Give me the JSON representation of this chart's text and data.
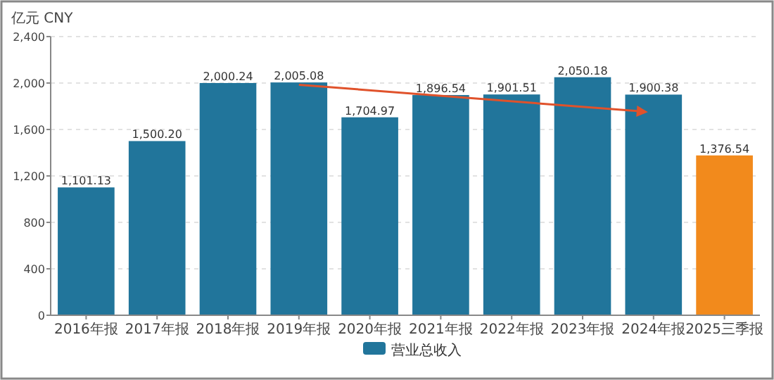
{
  "chart_data": {
    "type": "bar",
    "ylabel": "亿元  CNY",
    "categories": [
      "2016年报",
      "2017年报",
      "2018年报",
      "2019年报",
      "2020年报",
      "2021年报",
      "2022年报",
      "2023年报",
      "2024年报",
      "2025三季报"
    ],
    "series": [
      {
        "name": "营业总收入",
        "color": "#21759b",
        "values": [
          1101.13,
          1500.2,
          2000.24,
          2005.08,
          1704.97,
          1896.54,
          1901.51,
          2050.18,
          1900.38,
          1376.54
        ],
        "colors": [
          "#21759b",
          "#21759b",
          "#21759b",
          "#21759b",
          "#21759b",
          "#21759b",
          "#21759b",
          "#21759b",
          "#21759b",
          "#f28a1c"
        ],
        "value_labels": [
          "1,101.13",
          "1,500.20",
          "2,000.24",
          "2,005.08",
          "1,704.97",
          "1,896.54",
          "1,901.51",
          "2,050.18",
          "1,900.38",
          "1,376.54"
        ]
      }
    ],
    "ylim": [
      0,
      2400
    ],
    "yticks": [
      {
        "value": 0,
        "label": "0"
      },
      {
        "value": 400,
        "label": "400"
      },
      {
        "value": 800,
        "label": "800"
      },
      {
        "value": 1200,
        "label": "1,200"
      },
      {
        "value": 1600,
        "label": "1,600"
      },
      {
        "value": 2000,
        "label": "2,000"
      },
      {
        "value": 2400,
        "label": "2,400"
      }
    ],
    "grid": "y",
    "legend": "bottom"
  }
}
